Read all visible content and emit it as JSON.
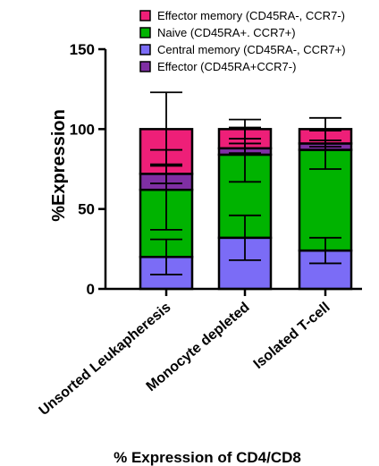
{
  "chart_data": {
    "type": "bar",
    "stacked": true,
    "title": "% Expression of CD4/CD8",
    "xlabel": "",
    "ylabel": "%Expression",
    "ylim": [
      0,
      150
    ],
    "yticks": [
      0,
      50,
      100,
      150
    ],
    "grid": false,
    "legend_position": "top-right",
    "categories": [
      "Unsorted Leukapheresis",
      "Monocyte depleted",
      "Isolated T-cell"
    ],
    "series": [
      {
        "name": "Central memory (CD45RA-, CCR7+)",
        "color": "#7b6cf6",
        "values": [
          20,
          32,
          24
        ],
        "errors": [
          11,
          14,
          8
        ]
      },
      {
        "name": "Naive (CD45RA+. CCR7+)",
        "color": "#00b300",
        "values": [
          42,
          52,
          63
        ],
        "errors": [
          25,
          17,
          12
        ]
      },
      {
        "name": "Effector (CD45RA+CCR7-)",
        "color": "#7f2fa3",
        "values": [
          10,
          4,
          4
        ],
        "errors": [
          6,
          3,
          2
        ]
      },
      {
        "name": "Effector memory (CD45RA-, CCR7-)",
        "color": "#ee1f78",
        "values": [
          28,
          12,
          9
        ],
        "errors": [
          23,
          6,
          7
        ]
      }
    ],
    "legend_order": [
      3,
      1,
      0,
      2
    ]
  }
}
